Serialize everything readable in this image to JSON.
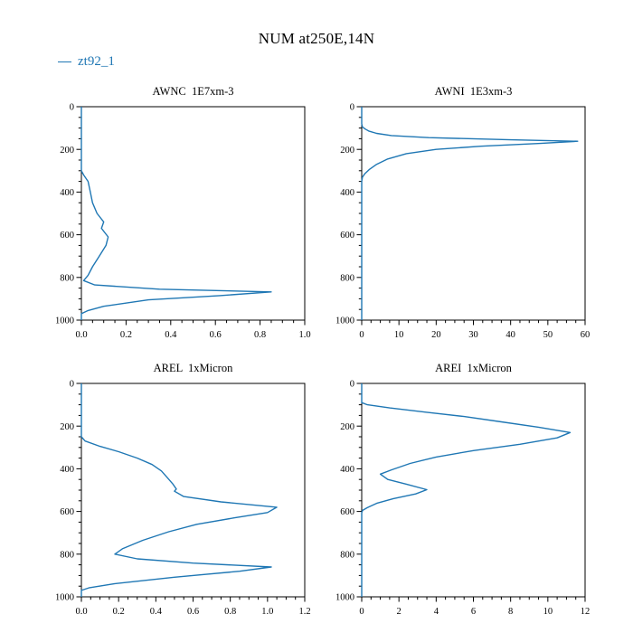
{
  "header": {
    "title": "NUM at250E,14N"
  },
  "legend": {
    "label": "zt92_1",
    "color": "#1f77b4",
    "position": "top-left"
  },
  "chart_data": [
    {
      "type": "line",
      "title": "AWNC  1E7xm-3",
      "xlabel": "",
      "ylabel": "",
      "xlim": [
        0,
        1.0
      ],
      "xticks": [
        "0.0",
        "0.2",
        "0.4",
        "0.6",
        "0.8",
        "1.0"
      ],
      "xminor": 0.05,
      "ylim": [
        0,
        1000
      ],
      "yticks": [
        "0",
        "200",
        "400",
        "600",
        "800",
        "1000"
      ],
      "yminor": 50,
      "y_orientation": "top-to-bottom",
      "series": [
        {
          "name": "zt92_1",
          "points_format": "[value, pressure_hPa]",
          "points": [
            [
              0,
              0
            ],
            [
              0,
              100
            ],
            [
              0,
              200
            ],
            [
              0,
              300
            ],
            [
              0.01,
              320
            ],
            [
              0.03,
              350
            ],
            [
              0.04,
              400
            ],
            [
              0.05,
              450
            ],
            [
              0.07,
              500
            ],
            [
              0.1,
              540
            ],
            [
              0.09,
              570
            ],
            [
              0.12,
              610
            ],
            [
              0.11,
              650
            ],
            [
              0.08,
              700
            ],
            [
              0.05,
              750
            ],
            [
              0.03,
              790
            ],
            [
              0.01,
              815
            ],
            [
              0.06,
              835
            ],
            [
              0.35,
              855
            ],
            [
              0.85,
              868
            ],
            [
              0.62,
              885
            ],
            [
              0.3,
              905
            ],
            [
              0.1,
              935
            ],
            [
              0.03,
              955
            ],
            [
              0,
              970
            ],
            [
              0,
              1000
            ]
          ]
        }
      ]
    },
    {
      "type": "line",
      "title": "AWNI  1E3xm-3",
      "xlabel": "",
      "ylabel": "",
      "xlim": [
        0,
        60
      ],
      "xticks": [
        "0",
        "10",
        "20",
        "30",
        "40",
        "50",
        "60"
      ],
      "xminor": 2.5,
      "ylim": [
        0,
        1000
      ],
      "yticks": [
        "0",
        "200",
        "400",
        "600",
        "800",
        "1000"
      ],
      "yminor": 50,
      "y_orientation": "top-to-bottom",
      "series": [
        {
          "name": "zt92_1",
          "points_format": "[value, pressure_hPa]",
          "points": [
            [
              0,
              0
            ],
            [
              0,
              80
            ],
            [
              0.2,
              95
            ],
            [
              1,
              105
            ],
            [
              2,
              115
            ],
            [
              4,
              125
            ],
            [
              8,
              135
            ],
            [
              18,
              145
            ],
            [
              40,
              155
            ],
            [
              58,
              162
            ],
            [
              48,
              172
            ],
            [
              32,
              185
            ],
            [
              20,
              200
            ],
            [
              12,
              220
            ],
            [
              7,
              245
            ],
            [
              4,
              270
            ],
            [
              2,
              295
            ],
            [
              0.8,
              315
            ],
            [
              0.2,
              330
            ],
            [
              0,
              350
            ],
            [
              0,
              500
            ],
            [
              0,
              1000
            ]
          ]
        }
      ]
    },
    {
      "type": "line",
      "title": "AREL  1xMicron",
      "xlabel": "",
      "ylabel": "",
      "xlim": [
        0,
        1.2
      ],
      "xticks": [
        "0.0",
        "0.2",
        "0.4",
        "0.6",
        "0.8",
        "1.0",
        "1.2"
      ],
      "xminor": 0.05,
      "ylim": [
        0,
        1000
      ],
      "yticks": [
        "0",
        "200",
        "400",
        "600",
        "800",
        "1000"
      ],
      "yminor": 50,
      "y_orientation": "top-to-bottom",
      "series": [
        {
          "name": "zt92_1",
          "points_format": "[value, pressure_hPa]",
          "points": [
            [
              0,
              0
            ],
            [
              0,
              250
            ],
            [
              0.02,
              270
            ],
            [
              0.1,
              295
            ],
            [
              0.2,
              320
            ],
            [
              0.3,
              350
            ],
            [
              0.38,
              380
            ],
            [
              0.43,
              410
            ],
            [
              0.46,
              440
            ],
            [
              0.49,
              470
            ],
            [
              0.51,
              495
            ],
            [
              0.5,
              505
            ],
            [
              0.55,
              530
            ],
            [
              0.75,
              555
            ],
            [
              1.05,
              580
            ],
            [
              1.0,
              605
            ],
            [
              0.82,
              630
            ],
            [
              0.62,
              660
            ],
            [
              0.47,
              695
            ],
            [
              0.33,
              735
            ],
            [
              0.22,
              775
            ],
            [
              0.18,
              800
            ],
            [
              0.3,
              822
            ],
            [
              0.6,
              842
            ],
            [
              1.02,
              860
            ],
            [
              0.85,
              880
            ],
            [
              0.5,
              908
            ],
            [
              0.18,
              938
            ],
            [
              0.04,
              958
            ],
            [
              0,
              970
            ],
            [
              0,
              1000
            ]
          ]
        }
      ]
    },
    {
      "type": "line",
      "title": "AREI  1xMicron",
      "xlabel": "",
      "ylabel": "",
      "xlim": [
        0,
        12
      ],
      "xticks": [
        "0",
        "2",
        "4",
        "6",
        "8",
        "10",
        "12"
      ],
      "xminor": 0.5,
      "ylim": [
        0,
        1000
      ],
      "yticks": [
        "0",
        "200",
        "400",
        "600",
        "800",
        "1000"
      ],
      "yminor": 50,
      "y_orientation": "top-to-bottom",
      "series": [
        {
          "name": "zt92_1",
          "points_format": "[value, pressure_hPa]",
          "points": [
            [
              0,
              0
            ],
            [
              0,
              90
            ],
            [
              0.3,
              100
            ],
            [
              1.5,
              115
            ],
            [
              3.5,
              135
            ],
            [
              5.5,
              155
            ],
            [
              7.5,
              180
            ],
            [
              9.5,
              205
            ],
            [
              11.2,
              230
            ],
            [
              10.5,
              255
            ],
            [
              8.5,
              285
            ],
            [
              6.0,
              315
            ],
            [
              4.0,
              345
            ],
            [
              2.6,
              375
            ],
            [
              1.6,
              405
            ],
            [
              1.0,
              425
            ],
            [
              1.4,
              450
            ],
            [
              2.4,
              472
            ],
            [
              3.5,
              498
            ],
            [
              2.9,
              518
            ],
            [
              1.7,
              540
            ],
            [
              0.8,
              562
            ],
            [
              0.3,
              582
            ],
            [
              0.05,
              595
            ],
            [
              0,
              605
            ],
            [
              0,
              1000
            ]
          ]
        }
      ]
    }
  ]
}
